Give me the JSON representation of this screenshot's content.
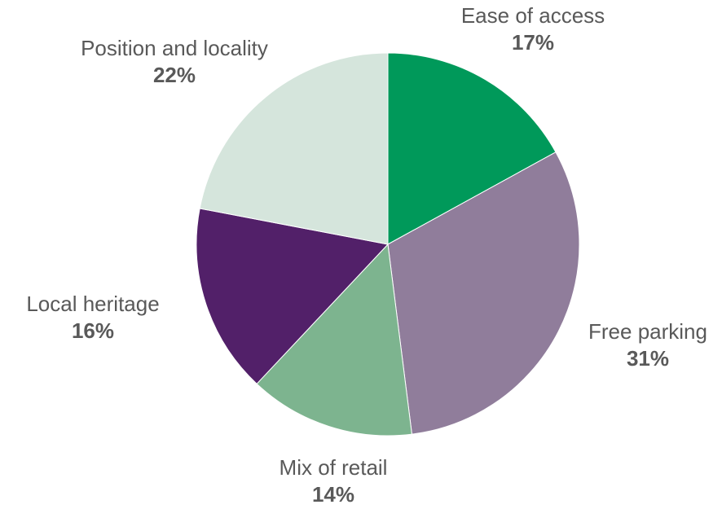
{
  "chart_data": {
    "type": "pie",
    "title": "",
    "start_angle_deg": 0,
    "direction": "clockwise",
    "slices": [
      {
        "label": "Ease of access",
        "value": 17,
        "value_label": "17%",
        "color": "#00995A"
      },
      {
        "label": "Free parking",
        "value": 31,
        "value_label": "31%",
        "color": "#907D9B"
      },
      {
        "label": "Mix of retail",
        "value": 14,
        "value_label": "14%",
        "color": "#7DB48F"
      },
      {
        "label": "Local heritage",
        "value": 16,
        "value_label": "16%",
        "color": "#522069"
      },
      {
        "label": "Position and locality",
        "value": 22,
        "value_label": "22%",
        "color": "#D5E5DC"
      }
    ]
  }
}
